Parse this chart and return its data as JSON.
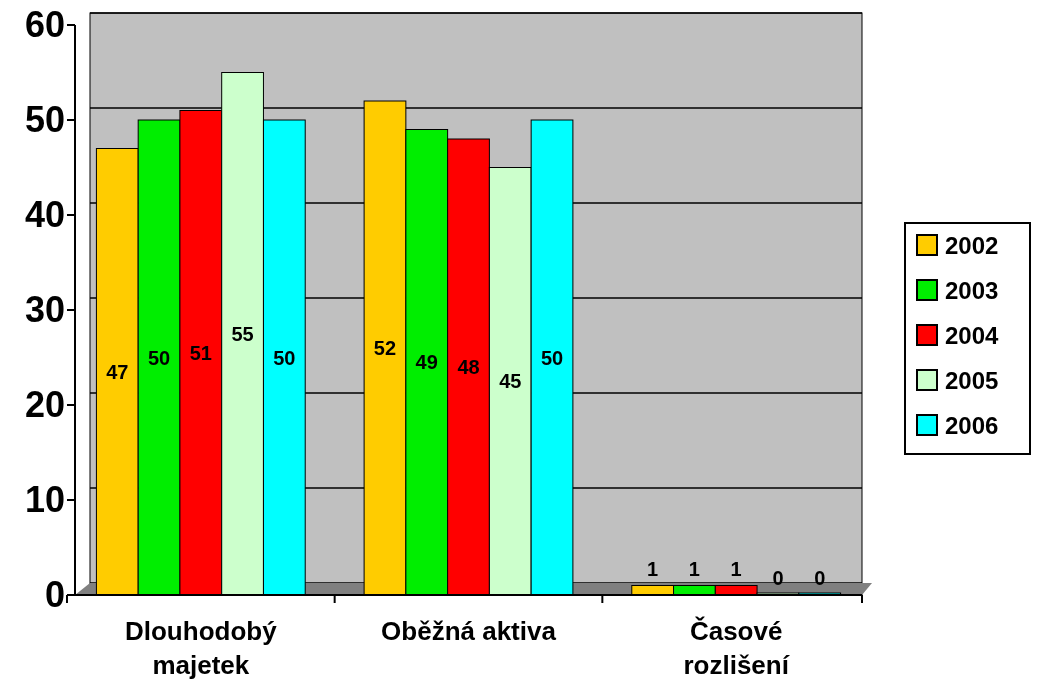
{
  "chart_data": {
    "type": "bar",
    "categories": [
      "Dlouhodobý majetek",
      "Oběžná aktiva",
      "Časové rozlišení"
    ],
    "series": [
      {
        "name": "2002",
        "color": "#ffcc00",
        "values": [
          47,
          52,
          1
        ]
      },
      {
        "name": "2003",
        "color": "#00ee00",
        "values": [
          50,
          49,
          1
        ]
      },
      {
        "name": "2004",
        "color": "#ff0000",
        "values": [
          51,
          48,
          1
        ]
      },
      {
        "name": "2005",
        "color": "#ccffcc",
        "values": [
          55,
          45,
          0
        ]
      },
      {
        "name": "2006",
        "color": "#00ffff",
        "values": [
          50,
          50,
          0
        ]
      }
    ],
    "ylim": [
      0,
      60
    ],
    "yticks": [
      0,
      10,
      20,
      30,
      40,
      50,
      60
    ],
    "grid": "y",
    "legend": "right",
    "data_labels": true
  }
}
